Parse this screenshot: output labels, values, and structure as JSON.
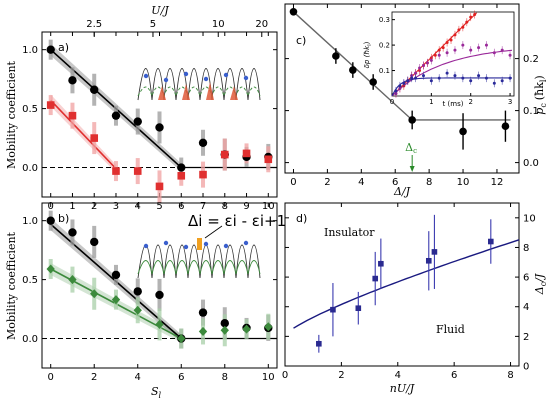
{
  "chart_data": [
    {
      "id": "a",
      "type": "scatter",
      "panel_label": "a)",
      "ylabel": "Mobility coefficient",
      "top_axis_label": "U/J",
      "top_ticks": [
        "2.5",
        "5",
        "10",
        "20"
      ],
      "top_tick_positions_S": [
        2.0,
        4.7,
        7.7,
        9.7
      ],
      "xlim": [
        -0.4,
        10.4
      ],
      "ylim": [
        -0.25,
        1.15
      ],
      "xticks": [
        0,
        1,
        2,
        3,
        4,
        5,
        6,
        7,
        8,
        9,
        10
      ],
      "yticks": [
        0.0,
        0.5,
        1.0
      ],
      "series": [
        {
          "color": "#000000",
          "marker": "circle",
          "x": [
            0,
            1,
            2,
            3,
            4,
            5,
            6,
            7,
            8,
            9,
            10
          ],
          "y": [
            1.0,
            0.74,
            0.66,
            0.44,
            0.39,
            0.34,
            0.0,
            0.21,
            0.11,
            0.09,
            0.09
          ]
        },
        {
          "color": "#e03030",
          "marker": "square",
          "x": [
            0,
            1,
            2,
            3,
            4,
            5,
            6,
            7,
            8,
            9,
            10
          ],
          "y": [
            0.53,
            0.44,
            0.25,
            -0.03,
            -0.03,
            -0.16,
            -0.07,
            -0.06,
            0.11,
            0.12,
            0.07
          ]
        }
      ],
      "fits": [
        {
          "color": "#000000",
          "x": [
            0,
            6
          ],
          "y": [
            1.0,
            0.0
          ]
        },
        {
          "color": "#e03030",
          "x": [
            0,
            3
          ],
          "y": [
            0.57,
            -0.01
          ]
        }
      ],
      "baseline_y": 0
    },
    {
      "id": "b",
      "type": "scatter",
      "panel_label": "b)",
      "ylabel": "Mobility coefficient",
      "xlabel": "S",
      "xlabel_sub": "l",
      "equation": "Δi = εi - εi+1",
      "xlim": [
        -0.4,
        10.4
      ],
      "ylim": [
        -0.25,
        1.15
      ],
      "xticks": [
        0,
        2,
        4,
        6,
        8,
        10
      ],
      "yticks": [
        0.0,
        0.5,
        1.0
      ],
      "series": [
        {
          "color": "#000000",
          "marker": "circle",
          "x": [
            0,
            1,
            2,
            3,
            4,
            5,
            6,
            7,
            8,
            9,
            10
          ],
          "y": [
            1.0,
            0.9,
            0.82,
            0.54,
            0.4,
            0.37,
            0.0,
            0.22,
            0.13,
            0.09,
            0.09
          ]
        },
        {
          "color": "#3c8a3c",
          "marker": "diamond",
          "x": [
            0,
            1,
            2,
            3,
            4,
            5,
            6,
            7,
            8,
            9,
            10
          ],
          "y": [
            0.59,
            0.5,
            0.38,
            0.33,
            0.24,
            0.12,
            0.0,
            0.06,
            0.07,
            0.08,
            0.1
          ]
        }
      ],
      "fits": [
        {
          "color": "#000000",
          "x": [
            0,
            6
          ],
          "y": [
            0.97,
            0.0
          ]
        },
        {
          "color": "#3c8a3c",
          "x": [
            0,
            6
          ],
          "y": [
            0.59,
            0.0
          ]
        }
      ],
      "baseline_y": 0
    },
    {
      "id": "c",
      "type": "scatter",
      "panel_label": "c)",
      "xlabel": "Δ/J",
      "ylabel_right": "p",
      "ylabel_right_sub": "c",
      "ylabel_right_unit": "(ħk",
      "ylabel_right_unit_sub": "l",
      "ylabel_right_unit_end": ")",
      "xlim": [
        -0.5,
        13.3
      ],
      "ylim": [
        -0.02,
        0.305
      ],
      "xticks": [
        0,
        2,
        4,
        6,
        8,
        10,
        12
      ],
      "yticks": [
        0.0,
        0.1,
        0.2
      ],
      "annotation": "Δ",
      "annotation_sub": "c",
      "annotation_x": 7.0,
      "points": {
        "x": [
          0,
          2.5,
          3.5,
          4.7,
          7.0,
          10.0,
          12.5
        ],
        "y": [
          0.29,
          0.205,
          0.178,
          0.155,
          0.082,
          0.06,
          0.07
        ],
        "yerr": [
          0.006,
          0.015,
          0.015,
          0.015,
          0.018,
          0.035,
          0.03
        ]
      },
      "fit": {
        "x": [
          0,
          7.0,
          12.8
        ],
        "y": [
          0.29,
          0.082,
          0.082
        ]
      },
      "inset": {
        "xlabel": "t (ms)",
        "ylabel": "δp (ħk",
        "ylabel_sub": "l",
        "ylabel_end": ")",
        "xlim": [
          0,
          3.1
        ],
        "ylim": [
          0,
          0.33
        ],
        "xticks": [
          0,
          1,
          2,
          3
        ],
        "yticks": [
          0.1,
          0.2,
          0.3
        ],
        "series": [
          {
            "color": "#e02020",
            "x": [
              0.1,
              0.2,
              0.3,
              0.4,
              0.5,
              0.6,
              0.7,
              0.8,
              0.9,
              1.0,
              1.1,
              1.2,
              1.3,
              1.4,
              1.5,
              1.6,
              1.7,
              1.8,
              1.9,
              2.0,
              2.1
            ],
            "y": [
              0.01,
              0.03,
              0.04,
              0.06,
              0.08,
              0.09,
              0.1,
              0.12,
              0.13,
              0.15,
              0.16,
              0.18,
              0.19,
              0.21,
              0.22,
              0.24,
              0.26,
              0.27,
              0.29,
              0.31,
              0.32
            ]
          },
          {
            "color": "#9a2a9a",
            "x": [
              0.1,
              0.2,
              0.3,
              0.4,
              0.5,
              0.6,
              0.7,
              0.8,
              0.9,
              1.0,
              1.2,
              1.4,
              1.6,
              1.8,
              2.0,
              2.2,
              2.4,
              2.6,
              2.8,
              3.0
            ],
            "y": [
              0.01,
              0.03,
              0.05,
              0.06,
              0.08,
              0.09,
              0.11,
              0.12,
              0.13,
              0.14,
              0.16,
              0.17,
              0.18,
              0.2,
              0.18,
              0.19,
              0.2,
              0.17,
              0.18,
              0.16
            ]
          },
          {
            "color": "#2a2a9a",
            "x": [
              0.1,
              0.2,
              0.3,
              0.4,
              0.5,
              0.6,
              0.8,
              1.0,
              1.2,
              1.4,
              1.6,
              1.8,
              2.0,
              2.2,
              2.4,
              2.6,
              2.8,
              3.0
            ],
            "y": [
              0.02,
              0.04,
              0.05,
              0.06,
              0.07,
              0.07,
              0.08,
              0.06,
              0.07,
              0.09,
              0.08,
              0.07,
              0.06,
              0.08,
              0.07,
              0.05,
              0.06,
              0.07
            ]
          }
        ],
        "fits": [
          {
            "color": "#e02020",
            "kind": "linear",
            "slope": 0.152,
            "x_end": 2.15
          },
          {
            "color": "#9a2a9a",
            "kind": "saturating",
            "amp": 0.2,
            "rate": 0.75,
            "x_end": 3.05
          },
          {
            "color": "#2a2a9a",
            "kind": "saturating",
            "amp": 0.071,
            "rate": 5.0,
            "x_end": 3.05
          }
        ]
      }
    },
    {
      "id": "d",
      "type": "scatter",
      "panel_label": "d)",
      "xlabel": "nU/J",
      "ylabel_right": "Δ",
      "ylabel_right_sub": "c",
      "ylabel_right_unit": "/J",
      "xlim": [
        0,
        8.3
      ],
      "ylim": [
        0,
        11
      ],
      "xticks": [
        0,
        2,
        4,
        6,
        8
      ],
      "yticks": [
        0,
        2,
        4,
        6,
        8,
        10
      ],
      "region_labels": [
        "Insulator",
        "Fluid"
      ],
      "points": {
        "x": [
          1.2,
          1.7,
          2.6,
          3.2,
          3.4,
          5.1,
          5.3,
          7.3
        ],
        "y": [
          1.5,
          3.8,
          3.9,
          5.9,
          6.9,
          7.1,
          7.7,
          8.4
        ],
        "yerr": [
          0.6,
          1.8,
          1.1,
          1.8,
          1.7,
          2.0,
          2.5,
          1.5
        ]
      },
      "fit": {
        "kind": "curve",
        "x0": 0.3,
        "x1": 8.3,
        "a": 2.1,
        "b": 1.18,
        "p": 0.8
      }
    }
  ]
}
